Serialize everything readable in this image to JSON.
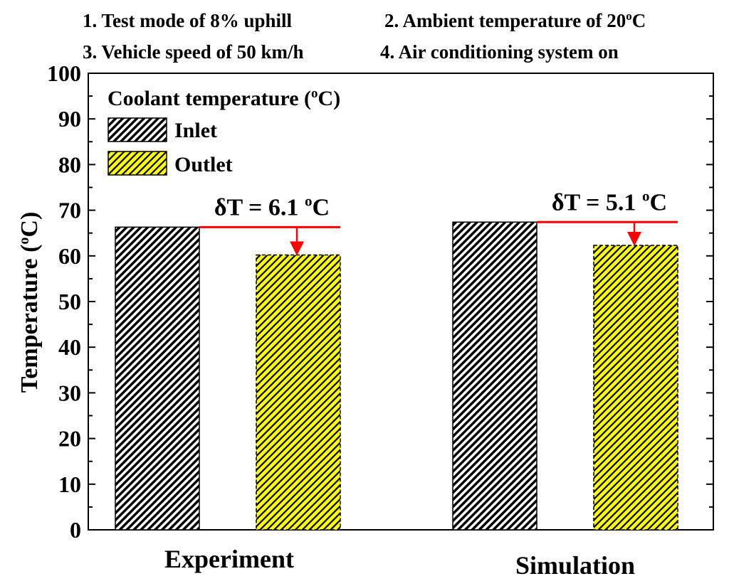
{
  "conditions": [
    "1. Test mode of 8% uphill",
    "2. Ambient temperature of 20",
    "3. Vehicle speed of 50 km/h",
    "4. Air conditioning system on"
  ],
  "condition_unit_sup": "o",
  "condition_unit": "C",
  "legend": {
    "title": "Coolant temperature (",
    "title_sup": "o",
    "title_end": "C)",
    "items": [
      "Inlet",
      "Outlet"
    ]
  },
  "colors": {
    "inlet": "#000000",
    "outlet": "#ffff00",
    "annotation": "#ff0000"
  },
  "chart_data": {
    "type": "bar",
    "categories": [
      "Experiment",
      "Simulation"
    ],
    "series": [
      {
        "name": "Inlet",
        "values": [
          66.3,
          67.4
        ]
      },
      {
        "name": "Outlet",
        "values": [
          60.2,
          62.3
        ]
      }
    ],
    "ylabel": "Temperature (",
    "ylabel_sup": "o",
    "ylabel_end": "C)",
    "ylim": [
      0,
      100
    ],
    "yticks": [
      0,
      10,
      20,
      30,
      40,
      50,
      60,
      70,
      80,
      90,
      100
    ],
    "annotations": [
      {
        "category": "Experiment",
        "label": "δT = 6.1",
        "sup": "o",
        "unit": "C"
      },
      {
        "category": "Simulation",
        "label": "δT = 5.1",
        "sup": "o",
        "unit": "C"
      }
    ],
    "legend_position": "top-left",
    "grid": false
  }
}
